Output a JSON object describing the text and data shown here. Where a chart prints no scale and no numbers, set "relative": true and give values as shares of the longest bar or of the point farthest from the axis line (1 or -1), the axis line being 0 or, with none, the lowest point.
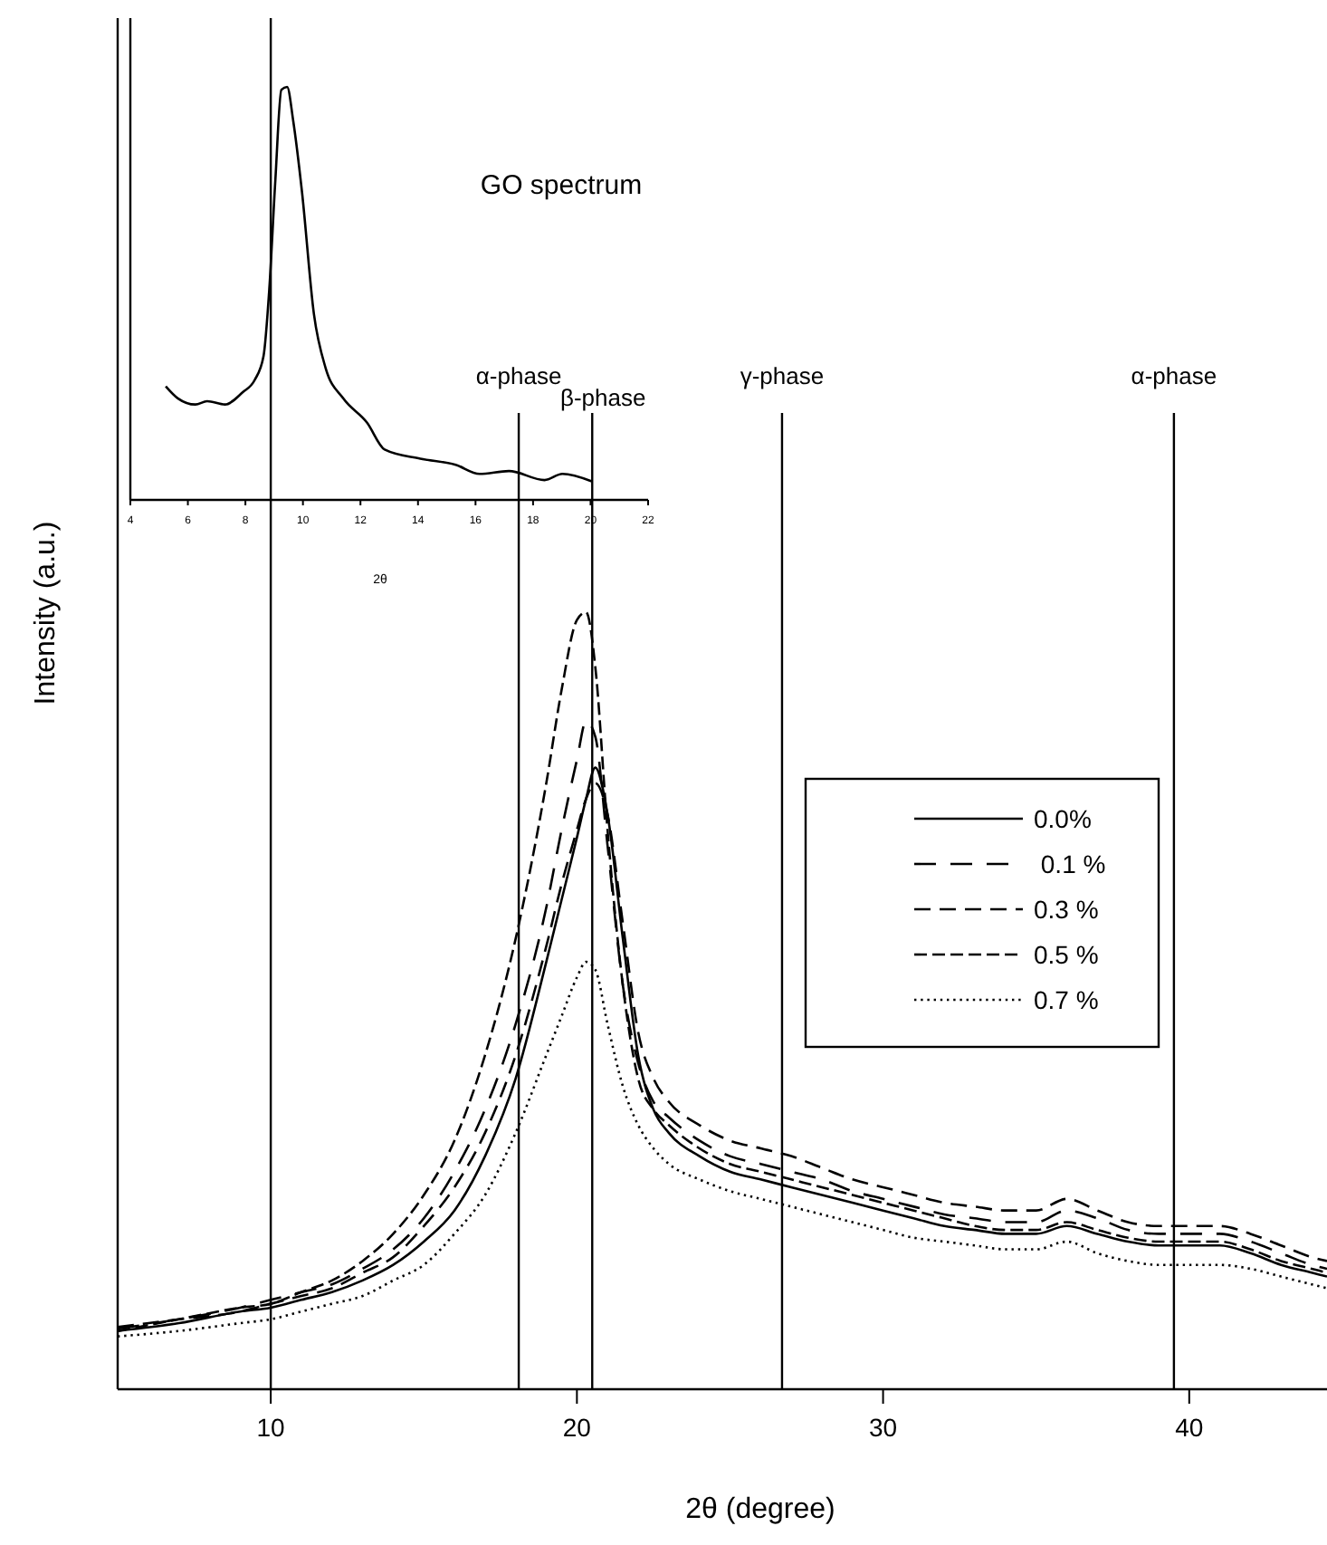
{
  "chart_data": [
    {
      "type": "line",
      "xlabel": "2θ (degree)",
      "ylabel": "Intensity (a.u.)",
      "relative": true,
      "xlim": [
        5,
        44.5
      ],
      "xticks": [
        10,
        20,
        30,
        40
      ],
      "legend": "right",
      "grid": false,
      "x": [
        5,
        7,
        9,
        10,
        11,
        12,
        13,
        14,
        15,
        16,
        17,
        18,
        19,
        19.5,
        20,
        20.3,
        20.6,
        21,
        21.5,
        22,
        22.5,
        23,
        24,
        25,
        26,
        27,
        28,
        29,
        30,
        31,
        32,
        33,
        34,
        35,
        36,
        37,
        38,
        39,
        40,
        41,
        42,
        43,
        44,
        44.5
      ],
      "series": [
        {
          "name": "0.0%",
          "color": "#000000",
          "line_style": "solid",
          "values": [
            0.075,
            0.085,
            0.1,
            0.105,
            0.115,
            0.125,
            0.14,
            0.16,
            0.19,
            0.23,
            0.3,
            0.4,
            0.55,
            0.63,
            0.71,
            0.76,
            0.8,
            0.74,
            0.58,
            0.43,
            0.36,
            0.33,
            0.3,
            0.28,
            0.27,
            0.26,
            0.25,
            0.24,
            0.23,
            0.22,
            0.21,
            0.205,
            0.2,
            0.2,
            0.21,
            0.2,
            0.19,
            0.185,
            0.185,
            0.185,
            0.175,
            0.16,
            0.15,
            0.145
          ]
        },
        {
          "name": " 0.1 %",
          "color": "#000000",
          "line_style": "dashed",
          "values": [
            0.078,
            0.09,
            0.105,
            0.115,
            0.125,
            0.135,
            0.155,
            0.18,
            0.22,
            0.28,
            0.36,
            0.47,
            0.62,
            0.72,
            0.81,
            0.86,
            0.84,
            0.7,
            0.52,
            0.42,
            0.37,
            0.35,
            0.32,
            0.3,
            0.29,
            0.28,
            0.27,
            0.255,
            0.245,
            0.235,
            0.225,
            0.22,
            0.215,
            0.215,
            0.23,
            0.22,
            0.205,
            0.2,
            0.2,
            0.2,
            0.19,
            0.175,
            0.16,
            0.155
          ]
        },
        {
          "name": "0.3 %",
          "color": "#000000",
          "line_style": "dashed",
          "values": [
            0.08,
            0.09,
            0.1,
            0.11,
            0.12,
            0.13,
            0.15,
            0.17,
            0.21,
            0.26,
            0.33,
            0.43,
            0.57,
            0.65,
            0.72,
            0.76,
            0.78,
            0.74,
            0.6,
            0.46,
            0.4,
            0.37,
            0.34,
            0.32,
            0.31,
            0.3,
            0.285,
            0.27,
            0.26,
            0.25,
            0.24,
            0.235,
            0.23,
            0.23,
            0.245,
            0.23,
            0.215,
            0.21,
            0.21,
            0.21,
            0.2,
            0.185,
            0.17,
            0.165
          ]
        },
        {
          "name": "0.5 %",
          "color": "#000000",
          "line_style": "dashed",
          "values": [
            0.075,
            0.09,
            0.105,
            0.11,
            0.125,
            0.14,
            0.165,
            0.2,
            0.25,
            0.32,
            0.43,
            0.58,
            0.78,
            0.9,
            0.99,
            1.0,
            0.93,
            0.72,
            0.52,
            0.4,
            0.36,
            0.34,
            0.31,
            0.29,
            0.28,
            0.27,
            0.26,
            0.25,
            0.24,
            0.23,
            0.22,
            0.21,
            0.205,
            0.205,
            0.215,
            0.205,
            0.195,
            0.19,
            0.19,
            0.19,
            0.18,
            0.165,
            0.155,
            0.15
          ]
        },
        {
          "name": "0.7 %",
          "color": "#000000",
          "line_style": "dotted",
          "values": [
            0.068,
            0.075,
            0.085,
            0.09,
            0.1,
            0.11,
            0.12,
            0.14,
            0.16,
            0.2,
            0.25,
            0.33,
            0.43,
            0.48,
            0.53,
            0.55,
            0.54,
            0.47,
            0.39,
            0.34,
            0.31,
            0.29,
            0.27,
            0.255,
            0.245,
            0.235,
            0.225,
            0.215,
            0.205,
            0.195,
            0.19,
            0.185,
            0.18,
            0.18,
            0.19,
            0.175,
            0.165,
            0.16,
            0.16,
            0.16,
            0.155,
            0.145,
            0.135,
            0.13
          ]
        }
      ],
      "ref_lines": [
        {
          "axis": "x",
          "value": 10,
          "color": "#000000"
        },
        {
          "axis": "x",
          "value": 18.1,
          "label": "α-phase",
          "color": "#000000"
        },
        {
          "axis": "x",
          "value": 20.5,
          "label": "β-phase",
          "color": "#000000"
        },
        {
          "axis": "x",
          "value": 26.7,
          "label": "γ-phase",
          "color": "#000000"
        },
        {
          "axis": "x",
          "value": 39.5,
          "label": "α-phase",
          "color": "#000000"
        }
      ]
    },
    {
      "type": "line",
      "title": "GO spectrum",
      "xlabel": "2θ",
      "relative": true,
      "xlim": [
        4,
        22
      ],
      "xticks": [
        4,
        6,
        8,
        10,
        12,
        14,
        16,
        18,
        20,
        22
      ],
      "grid": false,
      "legend": false,
      "x": [
        5.23,
        5.65,
        6.26,
        6.67,
        7.29,
        7.91,
        8.32,
        8.63,
        8.83,
        9.04,
        9.25,
        9.45,
        9.66,
        9.97,
        10.38,
        10.79,
        11.4,
        12.23,
        12.84,
        14.08,
        15.31,
        16.14,
        17.16,
        18.4,
        19.02,
        20.04
      ],
      "series": [
        {
          "color": "#000000",
          "values": [
            0.275,
            0.246,
            0.231,
            0.239,
            0.231,
            0.261,
            0.29,
            0.348,
            0.51,
            0.773,
            0.993,
            1.0,
            0.919,
            0.744,
            0.451,
            0.319,
            0.246,
            0.187,
            0.122,
            0.1,
            0.085,
            0.063,
            0.07,
            0.048,
            0.063,
            0.045
          ]
        }
      ]
    }
  ]
}
